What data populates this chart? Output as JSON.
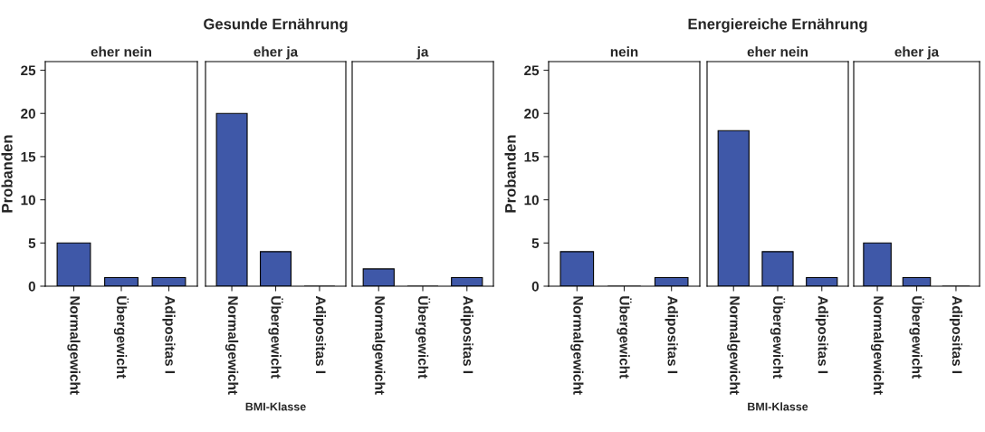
{
  "chart_data": [
    {
      "type": "bar",
      "title": "eher nein",
      "ylabel": "Probanden",
      "categories": [
        "Normalgewicht",
        "Übergewicht",
        "Adipositas I"
      ],
      "values": [
        5,
        1,
        1
      ],
      "color": "#3f58a8",
      "ylim": [
        0,
        26
      ],
      "yticks": [
        0,
        5,
        10,
        15,
        20,
        25
      ],
      "grid": false
    },
    {
      "type": "bar",
      "title": "Gesunde Ernährung",
      "subtitle": "eher ja",
      "xlabel": "BMI-Klasse",
      "categories": [
        "Normalgewicht",
        "Übergewicht",
        "Adipositas I"
      ],
      "values": [
        20,
        4,
        0
      ],
      "color": "#3f58a8",
      "ylim": [
        0,
        26
      ],
      "tick_labels": "x",
      "grid": false
    },
    {
      "type": "bar",
      "title": "ja",
      "categories": [
        "Normalgewicht",
        "Übergewicht",
        "Adipositas I"
      ],
      "values": [
        2,
        0,
        1
      ],
      "color": "#3f58a8",
      "ylim": [
        0,
        26
      ],
      "tick_labels": "x",
      "grid": false
    },
    {
      "type": "bar",
      "title": "nein",
      "ylabel": "Probanden",
      "categories": [
        "Normalgewicht",
        "Übergewicht",
        "Adipositas I"
      ],
      "values": [
        4,
        0,
        1
      ],
      "color": "#3f58a8",
      "ylim": [
        0,
        26
      ],
      "yticks": [
        0,
        5,
        10,
        15,
        20,
        25
      ],
      "grid": false
    },
    {
      "type": "bar",
      "title": "Energiereiche Ernährung",
      "subtitle": "eher nein",
      "xlabel": "BMI-Klasse",
      "categories": [
        "Normalgewicht",
        "Übergewicht",
        "Adipositas I"
      ],
      "values": [
        18,
        4,
        1
      ],
      "color": "#3f58a8",
      "ylim": [
        0,
        26
      ],
      "tick_labels": "x",
      "grid": false
    },
    {
      "type": "bar",
      "title": "eher ja",
      "categories": [
        "Normalgewicht",
        "Übergewicht",
        "Adipositas I"
      ],
      "values": [
        5,
        1,
        0
      ],
      "color": "#3f58a8",
      "ylim": [
        0,
        26
      ],
      "tick_labels": "x",
      "grid": false
    }
  ]
}
